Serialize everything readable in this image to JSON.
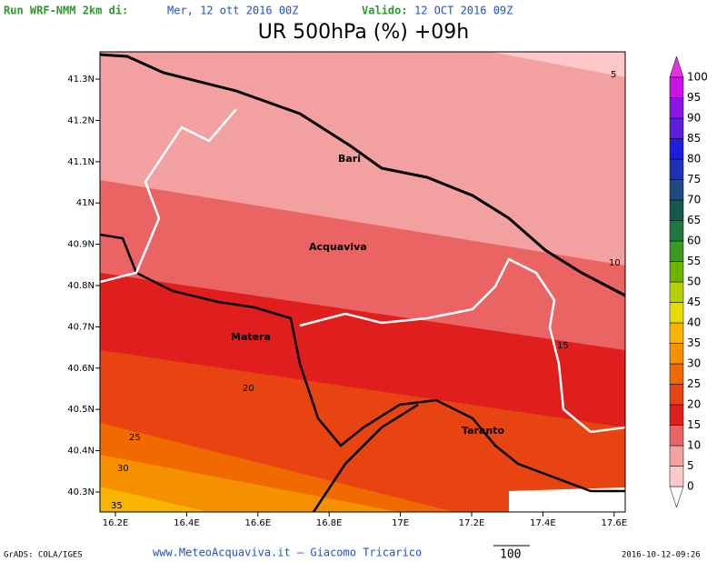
{
  "header": {
    "run_label": "Run WRF-NMM 2km di:",
    "run_date": "Mer, 12 ott 2016 00Z",
    "valid_label": "Valido:",
    "valid_date": "12 OCT 2016 09Z",
    "title": "UR 500hPa (%) +09h"
  },
  "map": {
    "lat_ticks": [
      "41.3N",
      "41.2N",
      "41.1N",
      "41N",
      "40.9N",
      "40.8N",
      "40.7N",
      "40.6N",
      "40.5N",
      "40.4N",
      "40.3N"
    ],
    "lon_ticks": [
      "16.2E",
      "16.4E",
      "16.6E",
      "16.8E",
      "17E",
      "17.2E",
      "17.4E",
      "17.6E"
    ],
    "cities": [
      "Bari",
      "Acquaviva",
      "Matera",
      "Taranto"
    ],
    "contour_labels": [
      5,
      10,
      15,
      20,
      25,
      30,
      35
    ]
  },
  "colorbar": {
    "levels": [
      0,
      5,
      10,
      15,
      20,
      25,
      30,
      35,
      40,
      45,
      50,
      55,
      60,
      65,
      70,
      75,
      80,
      85,
      90,
      95,
      100
    ],
    "colors": [
      "#fcc8c8",
      "#f3a0a0",
      "#ea6464",
      "#e01e1e",
      "#e84412",
      "#f06a00",
      "#f59000",
      "#f8b400",
      "#e6dc00",
      "#b4d200",
      "#6cb400",
      "#3c9a1e",
      "#1e7840",
      "#145a50",
      "#1e4b82",
      "#1e32b4",
      "#1e1edc",
      "#5a1edc",
      "#8c14e6",
      "#c814e6"
    ]
  },
  "footer": {
    "credit": "GrADS: COLA/IGES",
    "site": "www.MeteoAcquaviva.it – Giacomo Tricarico",
    "vector_scale": "100",
    "timestamp": "2016-10-12-09:26"
  }
}
